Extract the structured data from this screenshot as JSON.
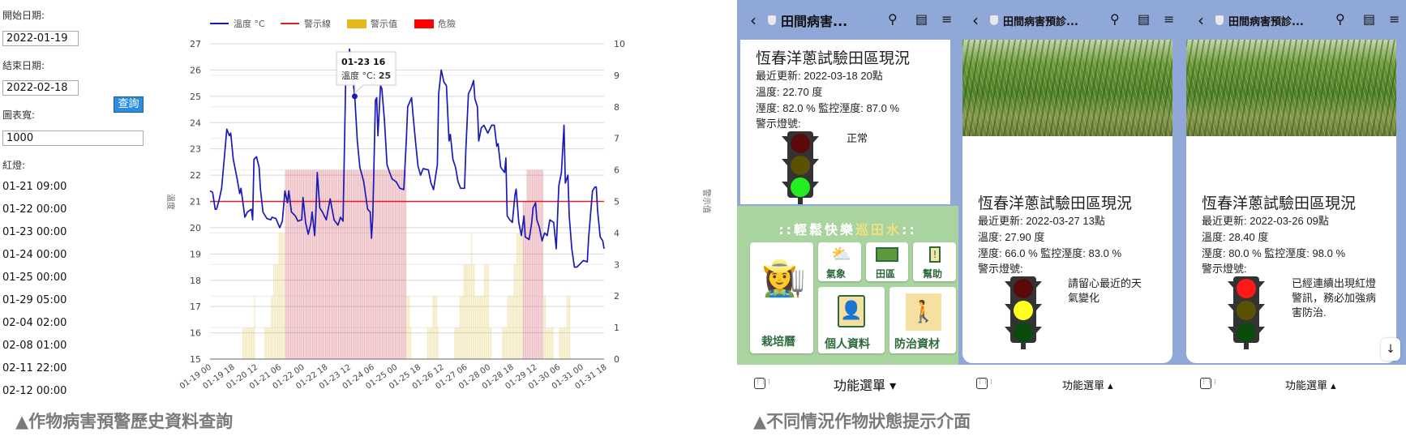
{
  "query": {
    "start_label": "開始日期:",
    "start_value": "2022-01-19",
    "end_label": "結束日期:",
    "end_value": "2022-02-18",
    "search_button": "查詢",
    "width_label": "圖表寬:",
    "width_value": "1000",
    "red_label": "紅燈:",
    "red_list": [
      "01-21 09:00",
      "01-22 00:00",
      "01-23 00:00",
      "01-24 00:00",
      "01-25 00:00",
      "01-29 05:00",
      "02-04 02:00",
      "02-08 01:00",
      "02-11 22:00",
      "02-12 00:00"
    ]
  },
  "captions": {
    "left": "▲作物病害預警歷史資料查詢",
    "right": "▲不同情況作物狀態提示介面"
  },
  "chart_data": {
    "type": "line+bar",
    "legend": [
      {
        "name": "溫度 °C",
        "kind": "line",
        "color": "#1a1ab8"
      },
      {
        "name": "警示線",
        "kind": "line",
        "color": "#e02020"
      },
      {
        "name": "警示值",
        "kind": "box",
        "color": "#e6b820"
      },
      {
        "name": "危險",
        "kind": "box",
        "color": "#ff0000"
      }
    ],
    "legend_position": "top",
    "ylabel_left": "溫度",
    "ylabel_right": "警示值",
    "ylim_left": [
      15,
      27
    ],
    "ylim_right": [
      0,
      10
    ],
    "grid": true,
    "x_ticks": [
      "01-19 00",
      "01-19 18",
      "01-20 12",
      "01-21 06",
      "01-22 00",
      "01-22 18",
      "01-23 12",
      "01-24 06",
      "01-25 00",
      "01-25 18",
      "01-26 12",
      "01-27 06",
      "01-28 00",
      "01-28 18",
      "01-29 12",
      "01-30 06",
      "01-31 00",
      "01-31 18"
    ],
    "x_range": [
      "01-19 00",
      "01-31 17"
    ],
    "warning_line": 21,
    "tooltip": {
      "time": "01-23 16",
      "series": "溫度 °C:",
      "value": "25"
    },
    "temperature_by_day": {
      "01-19": [
        [
          0,
          21.4
        ],
        [
          2,
          21.35
        ],
        [
          4,
          20.7
        ],
        [
          5,
          20.7
        ],
        [
          7,
          21.05
        ],
        [
          9,
          21.5
        ],
        [
          11,
          22.6
        ],
        [
          13,
          23.75
        ],
        [
          15,
          23.5
        ],
        [
          16,
          23.6
        ],
        [
          18,
          22.6
        ],
        [
          20,
          22.1
        ],
        [
          21,
          21.85
        ],
        [
          23,
          21.3
        ]
      ],
      "01-20": [
        [
          0,
          21.5
        ],
        [
          3,
          20.4
        ],
        [
          5,
          20.6
        ],
        [
          8,
          20.7
        ],
        [
          9,
          20.3
        ],
        [
          10,
          22.6
        ],
        [
          12,
          22.7
        ],
        [
          14,
          22.3
        ],
        [
          15,
          21.5
        ],
        [
          17,
          20.6
        ],
        [
          20,
          20.35
        ],
        [
          23,
          20.3
        ]
      ],
      "01-21": [
        [
          0,
          20.4
        ],
        [
          3,
          20.35
        ],
        [
          6,
          20.0
        ],
        [
          8,
          20.25
        ],
        [
          10,
          21.4
        ],
        [
          12,
          20.95
        ],
        [
          13,
          21.4
        ],
        [
          15,
          20.6
        ],
        [
          18,
          20.45
        ],
        [
          20,
          20.25
        ],
        [
          23,
          20.3
        ]
      ],
      "01-22": [
        [
          0,
          21.15
        ],
        [
          2,
          20.2
        ],
        [
          4,
          19.75
        ],
        [
          6,
          20.15
        ],
        [
          7,
          20.6
        ],
        [
          9,
          19.7
        ],
        [
          10,
          20.7
        ],
        [
          11,
          22.1
        ],
        [
          13,
          20.75
        ],
        [
          15,
          20.6
        ],
        [
          18,
          20.3
        ],
        [
          21,
          21.1
        ]
      ],
      "01-23": [
        [
          0,
          20.3
        ],
        [
          3,
          20.1
        ],
        [
          5,
          20.4
        ],
        [
          7,
          20.25
        ],
        [
          9,
          25.55
        ],
        [
          12,
          26.8
        ],
        [
          16,
          25.0
        ],
        [
          18,
          23.3
        ],
        [
          20,
          22.3
        ],
        [
          23,
          21.75
        ]
      ],
      "01-24": [
        [
          2,
          20.7
        ],
        [
          4,
          20.6
        ],
        [
          5,
          19.6
        ],
        [
          6,
          20.45
        ],
        [
          8,
          24.85
        ],
        [
          9,
          24.95
        ],
        [
          10,
          23.5
        ],
        [
          12,
          25.4
        ],
        [
          13,
          25.3
        ],
        [
          15,
          24.1
        ],
        [
          17,
          22.4
        ],
        [
          19,
          22.1
        ],
        [
          21,
          21.85
        ]
      ],
      "01-25": [
        [
          0,
          21.75
        ],
        [
          3,
          21.5
        ],
        [
          6,
          21.45
        ],
        [
          8,
          23.4
        ],
        [
          9,
          24.6
        ],
        [
          12,
          24.95
        ],
        [
          13,
          24.35
        ],
        [
          15,
          23.3
        ],
        [
          17,
          22.35
        ],
        [
          19,
          22.0
        ],
        [
          21,
          22.25
        ]
      ],
      "01-26": [
        [
          1,
          22.2
        ],
        [
          3,
          21.7
        ],
        [
          5,
          21.45
        ],
        [
          8,
          22.4
        ],
        [
          9,
          25.1
        ],
        [
          11,
          26.0
        ],
        [
          13,
          25.55
        ],
        [
          15,
          25.4
        ],
        [
          17,
          23.3
        ],
        [
          18,
          23.55
        ],
        [
          20,
          22.6
        ],
        [
          22,
          22.3
        ]
      ],
      "01-27": [
        [
          0,
          21.75
        ],
        [
          2,
          21.5
        ],
        [
          5,
          21.5
        ],
        [
          6,
          22.95
        ],
        [
          8,
          25.1
        ],
        [
          10,
          25.3
        ],
        [
          12,
          25.6
        ],
        [
          13,
          24.9
        ],
        [
          15,
          24.6
        ],
        [
          16,
          23.3
        ],
        [
          18,
          23.8
        ],
        [
          20,
          23.9
        ],
        [
          23,
          23.6
        ]
      ],
      "01-28": [
        [
          2,
          23.9
        ],
        [
          4,
          23.9
        ],
        [
          6,
          23.1
        ],
        [
          7,
          23.2
        ],
        [
          9,
          22.3
        ],
        [
          12,
          22.1
        ],
        [
          13,
          22.65
        ],
        [
          14,
          20.45
        ],
        [
          16,
          20.3
        ],
        [
          18,
          20.2
        ],
        [
          20,
          21.25
        ],
        [
          21,
          21.47
        ],
        [
          23,
          20.2
        ]
      ],
      "01-29": [
        [
          1,
          19.7
        ],
        [
          3,
          20.45
        ],
        [
          4,
          19.65
        ],
        [
          7,
          19.55
        ],
        [
          9,
          20.2
        ],
        [
          10,
          20.75
        ],
        [
          12,
          20.95
        ],
        [
          13,
          20.3
        ],
        [
          15,
          20.0
        ],
        [
          17,
          19.5
        ],
        [
          19,
          19.8
        ],
        [
          21,
          19.7
        ],
        [
          23,
          20.3
        ]
      ],
      "01-30": [
        [
          2,
          20.2
        ],
        [
          4,
          19.2
        ],
        [
          6,
          21.6
        ],
        [
          8,
          22.1
        ],
        [
          10,
          23.9
        ],
        [
          11,
          21.7
        ],
        [
          13,
          22.0
        ],
        [
          14,
          20.45
        ],
        [
          16,
          19.2
        ],
        [
          18,
          18.5
        ],
        [
          20,
          18.5
        ],
        [
          22,
          18.6
        ]
      ],
      "01-31": [
        [
          1,
          18.75
        ],
        [
          4,
          18.7
        ],
        [
          5,
          19.6
        ],
        [
          8,
          21.4
        ],
        [
          10,
          21.55
        ],
        [
          11,
          21.55
        ],
        [
          12,
          20.65
        ],
        [
          14,
          19.65
        ],
        [
          16,
          19.5
        ],
        [
          17,
          19.2
        ]
      ]
    },
    "alert_bars": [
      {
        "from": "01-20 01",
        "to": "01-20 10",
        "value": 1,
        "level": "警示值"
      },
      {
        "from": "01-20 10",
        "to": "01-20 11",
        "value": 2,
        "level": "警示值"
      },
      {
        "from": "01-20 18",
        "to": "01-20 23",
        "value": 1,
        "level": "警示值"
      },
      {
        "from": "01-20 23",
        "to": "01-21 01",
        "value": 2,
        "level": "警示值"
      },
      {
        "from": "01-21 01",
        "to": "01-21 05",
        "value": 3,
        "level": "警示值"
      },
      {
        "from": "01-21 05",
        "to": "01-21 10",
        "value": 4,
        "level": "警示值"
      },
      {
        "from": "01-21 10",
        "to": "01-25 08",
        "value": 6,
        "level": "危險"
      },
      {
        "from": "01-25 08",
        "to": "01-25 11",
        "value": 2,
        "level": "警示值"
      },
      {
        "from": "01-25 11",
        "to": "01-25 12",
        "value": 1,
        "level": "警示值"
      },
      {
        "from": "01-26 00",
        "to": "01-26 04",
        "value": 1,
        "level": "警示值"
      },
      {
        "from": "01-26 04",
        "to": "01-26 08",
        "value": 2,
        "level": "警示值"
      },
      {
        "from": "01-26 08",
        "to": "01-26 09",
        "value": 1,
        "level": "警示值"
      },
      {
        "from": "01-26 21",
        "to": "01-27 01",
        "value": 1,
        "level": "警示值"
      },
      {
        "from": "01-27 01",
        "to": "01-27 04",
        "value": 2,
        "level": "警示值"
      },
      {
        "from": "01-27 04",
        "to": "01-27 10",
        "value": 3,
        "level": "警示值"
      },
      {
        "from": "01-27 10",
        "to": "01-27 11",
        "value": 4,
        "level": "警示值"
      },
      {
        "from": "01-27 11",
        "to": "01-27 13",
        "value": 3,
        "level": "警示值"
      },
      {
        "from": "01-27 13",
        "to": "01-27 20",
        "value": 2,
        "level": "警示值"
      },
      {
        "from": "01-27 20",
        "to": "01-28 00",
        "value": 3,
        "level": "警示值"
      },
      {
        "from": "01-28 00",
        "to": "01-28 02",
        "value": 1,
        "level": "警示值"
      },
      {
        "from": "01-28 10",
        "to": "01-28 14",
        "value": 1,
        "level": "警示值"
      },
      {
        "from": "01-28 14",
        "to": "01-28 19",
        "value": 2,
        "level": "警示值"
      },
      {
        "from": "01-28 19",
        "to": "01-28 21",
        "value": 3,
        "level": "警示值"
      },
      {
        "from": "01-28 21",
        "to": "01-29 02",
        "value": 4,
        "level": "警示值"
      },
      {
        "from": "01-29 02",
        "to": "01-29 05",
        "value": 5,
        "level": "危險"
      },
      {
        "from": "01-29 05",
        "to": "01-29 18",
        "value": 6,
        "level": "危險"
      },
      {
        "from": "01-29 18",
        "to": "01-29 20",
        "value": 2,
        "level": "警示值"
      },
      {
        "from": "01-29 20",
        "to": "01-30 02",
        "value": 1,
        "level": "警示值"
      },
      {
        "from": "01-30 06",
        "to": "01-30 12",
        "value": 1,
        "level": "警示值"
      },
      {
        "from": "01-30 12",
        "to": "01-30 15",
        "value": 2,
        "level": "警示值"
      }
    ]
  },
  "phones": [
    {
      "header_title": "田間病害...",
      "card_title": "恆春洋蔥試驗田區現況",
      "updated": "最近更新: 2022-03-18 20點",
      "temp": "溫度: 22.70 度",
      "humidity": "溼度: 82.0 % 監控溼度: 87.0 %",
      "signal_label": "警示燈號:",
      "status_text": "正常",
      "light": "green",
      "menu_label": "功能選單 ▾"
    },
    {
      "header_title": "田間病害預診...",
      "card_title": "恆春洋蔥試驗田區現況",
      "updated": "最近更新: 2022-03-27 13點",
      "temp": "溫度: 27.90 度",
      "humidity": "溼度: 66.0 % 監控溼度: 83.0 %",
      "signal_label": "警示燈號:",
      "status_text": "請留心最近的天氣變化",
      "light": "yellow",
      "menu_label": "功能選單 ▴"
    },
    {
      "header_title": "田間病害預診...",
      "card_title": "恆春洋蔥試驗田區現況",
      "updated": "最近更新: 2022-03-26 09點",
      "temp": "溫度: 28.40 度",
      "humidity": "溼度: 80.0 % 監控溼度: 98.0 %",
      "signal_label": "警示燈號:",
      "status_text": "已經連續出現紅燈警訊，務必加強病害防治.",
      "light": "red",
      "menu_label": "功能選單 ▴"
    }
  ],
  "rich_menu": {
    "title_a": "::輕鬆快樂",
    "title_b": "巡田水",
    "title_c": "::",
    "tiles": [
      "栽培曆",
      "氣象",
      "田區",
      "幫助",
      "個人資料",
      "防治資材"
    ]
  },
  "colors": {
    "phone_bg": "#8fa8d8",
    "menu_green": "#a9d39f",
    "button_blue": "#2a8de0"
  }
}
